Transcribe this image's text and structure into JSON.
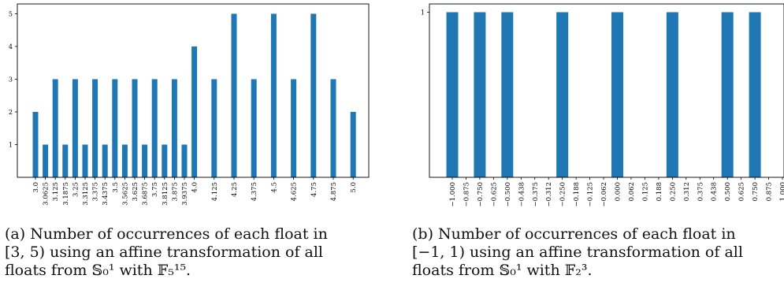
{
  "chart_data": [
    {
      "type": "bar",
      "title": "",
      "xlabel": "",
      "ylabel": "",
      "categories": [
        "3.0",
        "3.0625",
        "3.125",
        "3.1875",
        "3.25",
        "3.3125",
        "3.375",
        "3.4375",
        "3.5",
        "3.5625",
        "3.625",
        "3.6875",
        "3.75",
        "3.8125",
        "3.875",
        "3.9375",
        "4.0",
        "4.125",
        "4.25",
        "4.375",
        "4.5",
        "4.625",
        "4.75",
        "4.875",
        "5.0"
      ],
      "values": [
        2,
        1,
        3,
        1,
        3,
        1,
        3,
        1,
        3,
        1,
        3,
        1,
        3,
        1,
        3,
        1,
        4,
        3,
        5,
        3,
        5,
        3,
        5,
        3,
        2
      ],
      "yticks": [
        1,
        2,
        3,
        4,
        5
      ],
      "ylim": [
        0,
        5.3
      ],
      "grid": false,
      "bar_color": "#1f77b4",
      "caption_lines": [
        "(a) Number of occurrences of each float in",
        "[3, 5) using an affine transformation of all",
        "floats from 𝕊₀¹ with 𝔽₅¹⁵."
      ]
    },
    {
      "type": "bar",
      "title": "",
      "xlabel": "",
      "ylabel": "",
      "categories": [
        "−1.000",
        "−0.875",
        "−0.750",
        "−0.625",
        "−0.500",
        "−0.438",
        "−0.375",
        "−0.312",
        "−0.250",
        "−0.188",
        "−0.125",
        "−0.062",
        "0.000",
        "0.062",
        "0.125",
        "0.188",
        "0.250",
        "0.312",
        "0.375",
        "0.438",
        "0.500",
        "0.625",
        "0.750",
        "0.875",
        "1.000"
      ],
      "x": [
        -1.0,
        -0.875,
        -0.75,
        -0.625,
        -0.5,
        -0.4375,
        -0.375,
        -0.3125,
        -0.25,
        -0.1875,
        -0.125,
        -0.0625,
        0.0,
        0.0625,
        0.125,
        0.1875,
        0.25,
        0.3125,
        0.375,
        0.4375,
        0.5,
        0.625,
        0.75,
        0.875,
        1.0
      ],
      "bars": [
        {
          "x": -1.0,
          "value": 1
        },
        {
          "x": -0.75,
          "value": 1
        },
        {
          "x": -0.5,
          "value": 1
        },
        {
          "x": -0.25,
          "value": 1
        },
        {
          "x": 0.0,
          "value": 1
        },
        {
          "x": 0.25,
          "value": 1
        },
        {
          "x": 0.5,
          "value": 1
        },
        {
          "x": 0.75,
          "value": 1
        }
      ],
      "yticks": [
        1
      ],
      "ylim": [
        0,
        1.05
      ],
      "grid": false,
      "bar_color": "#1f77b4",
      "caption_lines": [
        "(b) Number of occurrences of each float in",
        "[−1, 1) using an affine transformation of all",
        "floats from 𝕊₀¹ with 𝔽₂³."
      ]
    }
  ]
}
